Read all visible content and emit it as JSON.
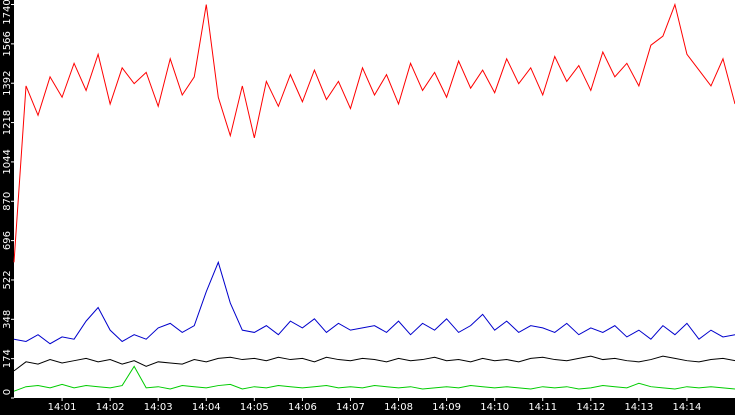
{
  "chart_data": {
    "type": "line",
    "x": [
      0,
      0.25,
      0.5,
      0.75,
      1,
      1.25,
      1.5,
      1.75,
      2,
      2.25,
      2.5,
      2.75,
      3,
      3.25,
      3.5,
      3.75,
      4,
      4.25,
      4.5,
      4.75,
      5,
      5.25,
      5.5,
      5.75,
      6,
      6.25,
      6.5,
      6.75,
      7,
      7.25,
      7.5,
      7.75,
      8,
      8.25,
      8.5,
      8.75,
      9,
      9.25,
      9.5,
      9.75,
      10,
      10.25,
      10.5,
      10.75,
      11,
      11.25,
      11.5,
      11.75,
      12,
      12.25,
      12.5,
      12.75,
      13,
      13.25,
      13.5,
      13.75,
      14,
      14.25,
      14.5,
      14.75,
      15
    ],
    "series": [
      {
        "color": "#ff0000",
        "values": [
          600,
          1380,
          1250,
          1420,
          1330,
          1480,
          1360,
          1520,
          1300,
          1460,
          1390,
          1440,
          1290,
          1500,
          1340,
          1420,
          1740,
          1330,
          1160,
          1380,
          1150,
          1400,
          1290,
          1430,
          1310,
          1450,
          1320,
          1400,
          1280,
          1460,
          1340,
          1430,
          1300,
          1480,
          1360,
          1440,
          1330,
          1490,
          1370,
          1450,
          1350,
          1500,
          1390,
          1460,
          1340,
          1510,
          1400,
          1470,
          1360,
          1530,
          1420,
          1480,
          1380,
          1560,
          1600,
          1740,
          1520,
          1450,
          1380,
          1500,
          1300
        ]
      },
      {
        "color": "#0000cc",
        "values": [
          260,
          250,
          280,
          240,
          270,
          260,
          340,
          400,
          300,
          250,
          280,
          260,
          310,
          330,
          290,
          320,
          470,
          600,
          420,
          300,
          290,
          320,
          280,
          340,
          310,
          350,
          290,
          330,
          300,
          310,
          320,
          290,
          340,
          280,
          330,
          300,
          350,
          290,
          320,
          370,
          300,
          340,
          290,
          320,
          310,
          290,
          330,
          280,
          310,
          290,
          320,
          270,
          300,
          260,
          320,
          280,
          330,
          260,
          300,
          270,
          280
        ]
      },
      {
        "color": "#000000",
        "values": [
          120,
          160,
          150,
          170,
          155,
          165,
          175,
          160,
          170,
          150,
          165,
          140,
          160,
          155,
          150,
          170,
          160,
          175,
          180,
          170,
          175,
          165,
          180,
          170,
          175,
          160,
          180,
          170,
          165,
          175,
          170,
          160,
          175,
          165,
          170,
          180,
          165,
          170,
          160,
          175,
          165,
          170,
          160,
          175,
          180,
          170,
          165,
          175,
          185,
          170,
          175,
          165,
          160,
          170,
          185,
          175,
          165,
          160,
          170,
          175,
          165
        ]
      },
      {
        "color": "#00cc00",
        "values": [
          30,
          50,
          55,
          45,
          60,
          45,
          55,
          50,
          45,
          55,
          140,
          45,
          50,
          40,
          55,
          50,
          45,
          55,
          60,
          40,
          50,
          45,
          55,
          50,
          45,
          50,
          55,
          45,
          50,
          45,
          55,
          50,
          45,
          50,
          40,
          45,
          50,
          45,
          55,
          50,
          45,
          50,
          45,
          40,
          50,
          45,
          50,
          40,
          45,
          55,
          50,
          45,
          65,
          50,
          45,
          40,
          50,
          45,
          50,
          45,
          40
        ]
      }
    ],
    "xlim": [
      0,
      15
    ],
    "xticks": [
      {
        "value": 1,
        "label": "14:01"
      },
      {
        "value": 2,
        "label": "14:02"
      },
      {
        "value": 3,
        "label": "14:03"
      },
      {
        "value": 4,
        "label": "14:04"
      },
      {
        "value": 5,
        "label": "14:05"
      },
      {
        "value": 6,
        "label": "14:06"
      },
      {
        "value": 7,
        "label": "14:07"
      },
      {
        "value": 8,
        "label": "14:08"
      },
      {
        "value": 9,
        "label": "14:09"
      },
      {
        "value": 10,
        "label": "14:10"
      },
      {
        "value": 11,
        "label": "14:11"
      },
      {
        "value": 12,
        "label": "14:12"
      },
      {
        "value": 13,
        "label": "14:13"
      },
      {
        "value": 14,
        "label": "14:14"
      }
    ],
    "ylim": [
      0,
      1760
    ],
    "yticks": [
      0,
      174,
      348,
      522,
      696,
      870,
      1044,
      1218,
      1392,
      1566,
      1740
    ]
  }
}
